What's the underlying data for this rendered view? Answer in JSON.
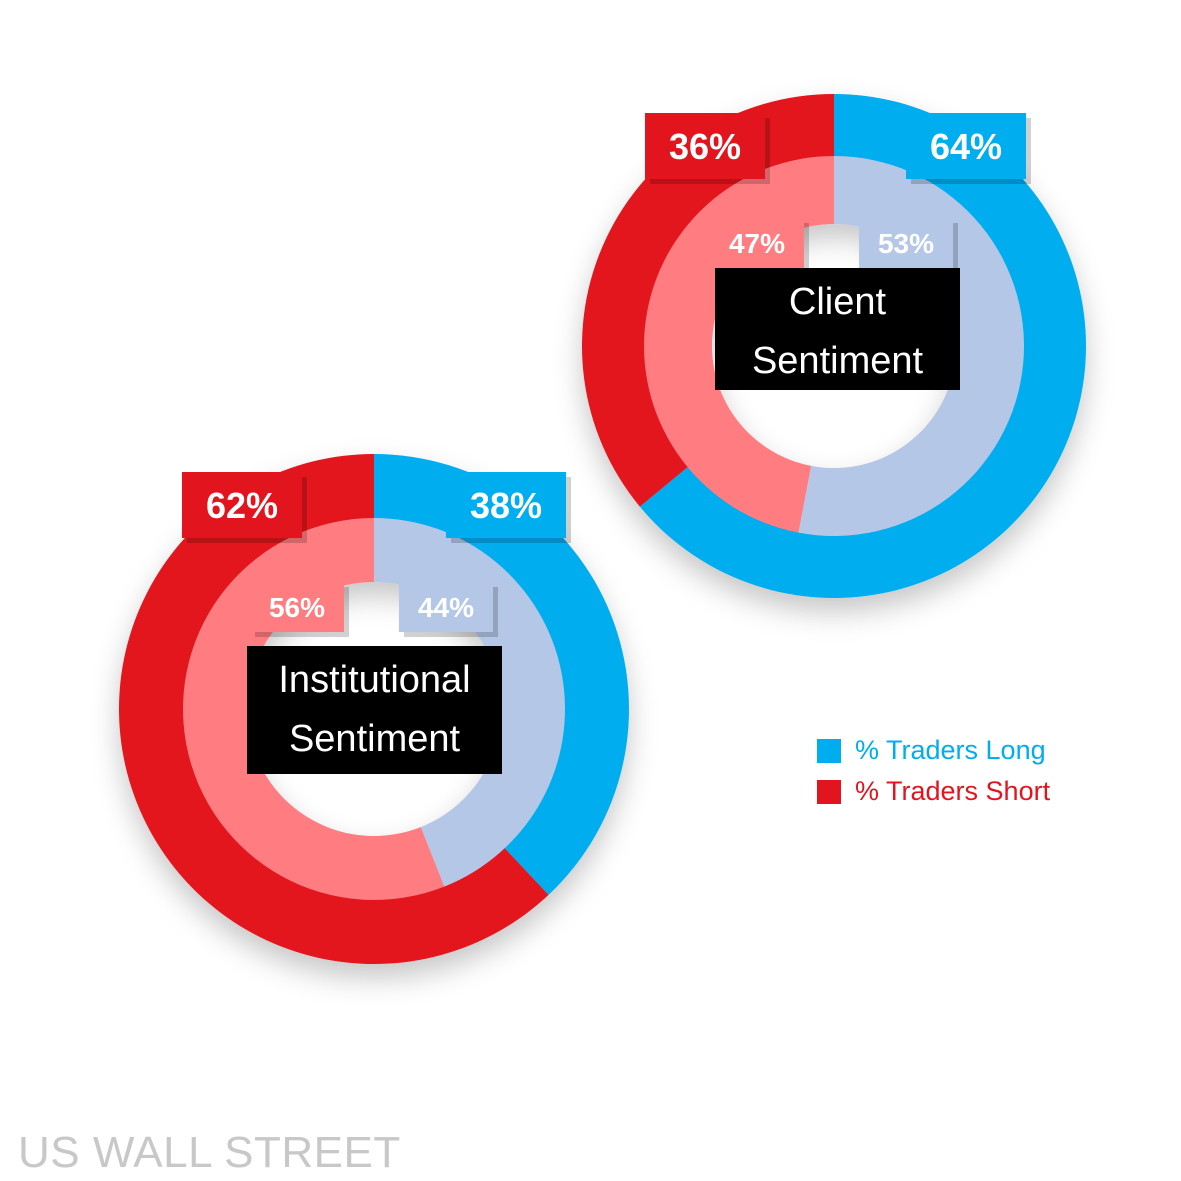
{
  "chart_data": [
    {
      "type": "donut",
      "title": "Client Sentiment",
      "title_lines": [
        "Client",
        "Sentiment"
      ],
      "series": [
        {
          "name": "% Traders Long",
          "outer": true,
          "values": {
            "long": 64,
            "short": 36
          }
        },
        {
          "name": "",
          "outer": false,
          "values": {
            "long": 53,
            "short": 47
          }
        }
      ],
      "labels": {
        "outer_long": "64%",
        "outer_short": "36%",
        "inner_long": "53%",
        "inner_short": "47%"
      }
    },
    {
      "type": "donut",
      "title": "Institutional Sentiment",
      "title_lines": [
        "Institutional",
        "Sentiment"
      ],
      "series": [
        {
          "name": "% Traders Long",
          "outer": true,
          "values": {
            "long": 38,
            "short": 62
          }
        },
        {
          "name": "",
          "outer": false,
          "values": {
            "long": 44,
            "short": 56
          }
        }
      ],
      "labels": {
        "outer_long": "38%",
        "outer_short": "62%",
        "inner_long": "44%",
        "inner_short": "56%"
      }
    }
  ],
  "legend": {
    "position": "right",
    "items": [
      {
        "label": "% Traders Long",
        "color": "#00adee"
      },
      {
        "label": "% Traders Short",
        "color": "#e2151e"
      }
    ]
  },
  "colors": {
    "long_outer": "#00adee",
    "short_outer": "#e2151e",
    "long_inner": "#b4c7e7",
    "short_inner": "#ff7c80"
  },
  "watermark": "US WALL STREET"
}
